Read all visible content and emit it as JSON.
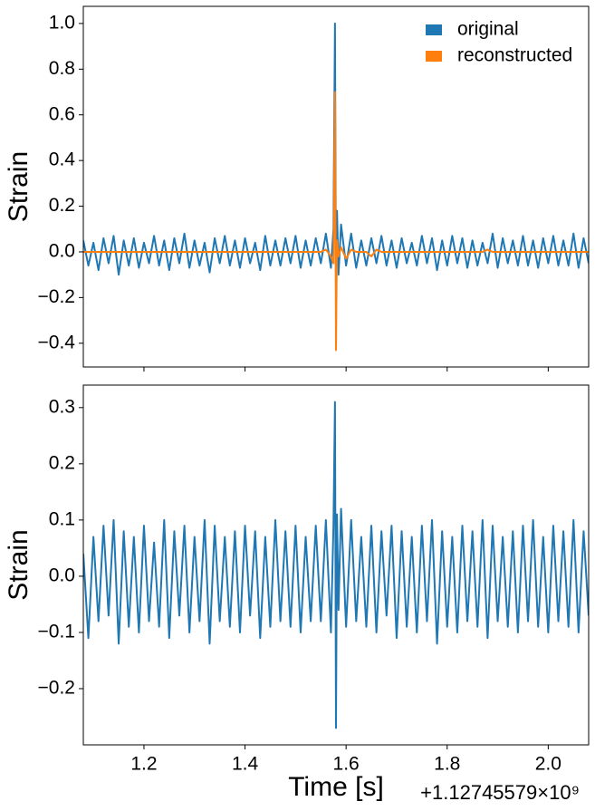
{
  "chart_data": [
    {
      "type": "line",
      "y_label": "Strain",
      "x": [
        1.08,
        1.09,
        1.1,
        1.11,
        1.12,
        1.13,
        1.14,
        1.15,
        1.16,
        1.17,
        1.18,
        1.19,
        1.2,
        1.21,
        1.22,
        1.23,
        1.24,
        1.25,
        1.26,
        1.27,
        1.28,
        1.29,
        1.3,
        1.31,
        1.32,
        1.33,
        1.34,
        1.35,
        1.36,
        1.37,
        1.38,
        1.39,
        1.4,
        1.41,
        1.42,
        1.43,
        1.44,
        1.45,
        1.46,
        1.47,
        1.48,
        1.49,
        1.5,
        1.51,
        1.52,
        1.53,
        1.54,
        1.55,
        1.56,
        1.57,
        1.575,
        1.578,
        1.58,
        1.582,
        1.585,
        1.59,
        1.6,
        1.61,
        1.62,
        1.63,
        1.64,
        1.65,
        1.66,
        1.67,
        1.68,
        1.69,
        1.7,
        1.71,
        1.72,
        1.73,
        1.74,
        1.75,
        1.76,
        1.77,
        1.78,
        1.79,
        1.8,
        1.81,
        1.82,
        1.83,
        1.84,
        1.85,
        1.86,
        1.87,
        1.88,
        1.89,
        1.9,
        1.91,
        1.92,
        1.93,
        1.94,
        1.95,
        1.96,
        1.97,
        1.98,
        1.99,
        2.0,
        2.01,
        2.02,
        2.03,
        2.04,
        2.05,
        2.06,
        2.07,
        2.08
      ],
      "series": [
        {
          "name": "original",
          "color": "#1f77b4",
          "values": [
            0.05,
            -0.06,
            0.04,
            -0.08,
            0.06,
            -0.05,
            0.07,
            -0.1,
            0.05,
            -0.06,
            0.06,
            -0.07,
            0.04,
            -0.05,
            0.07,
            -0.06,
            0.05,
            -0.08,
            0.06,
            -0.05,
            0.08,
            -0.07,
            0.05,
            -0.06,
            0.04,
            -0.09,
            0.06,
            -0.05,
            0.07,
            -0.06,
            0.05,
            -0.07,
            0.06,
            -0.05,
            0.04,
            -0.08,
            0.07,
            -0.06,
            0.05,
            -0.06,
            0.06,
            -0.05,
            0.07,
            -0.07,
            0.05,
            -0.06,
            0.06,
            -0.05,
            0.08,
            -0.07,
            0.1,
            1.0,
            -0.2,
            0.18,
            -0.1,
            0.12,
            -0.06,
            0.08,
            -0.07,
            0.05,
            -0.06,
            0.06,
            -0.05,
            0.07,
            -0.06,
            0.05,
            -0.07,
            0.06,
            -0.05,
            0.04,
            -0.06,
            0.07,
            -0.05,
            0.06,
            -0.08,
            0.05,
            -0.06,
            0.07,
            -0.05,
            0.06,
            -0.07,
            0.05,
            -0.06,
            0.04,
            -0.05,
            0.08,
            -0.07,
            0.06,
            -0.05,
            0.05,
            -0.06,
            0.07,
            -0.06,
            0.05,
            -0.07,
            0.06,
            -0.05,
            0.07,
            -0.06,
            0.05,
            -0.06,
            0.08,
            -0.07,
            0.06,
            -0.05
          ]
        },
        {
          "name": "reconstructed",
          "color": "#ff7f0e",
          "values": [
            0,
            0,
            0,
            0,
            0,
            0,
            0,
            0,
            0,
            0,
            0,
            0,
            0,
            0,
            0,
            0,
            0,
            0,
            0,
            0,
            0,
            0,
            0,
            0,
            0,
            0,
            0,
            0,
            0,
            0,
            0,
            0,
            0,
            0,
            0,
            0,
            0,
            0,
            0,
            0,
            0,
            0,
            0,
            0,
            0,
            0,
            0,
            0,
            0.01,
            -0.02,
            -0.05,
            0.7,
            -0.43,
            0.05,
            -0.02,
            0.02,
            -0.03,
            0.01,
            0,
            0,
            0,
            -0.02,
            0.01,
            0,
            0,
            0,
            0,
            0,
            0,
            0,
            0,
            0,
            0,
            0,
            0,
            0,
            0,
            0,
            0,
            0,
            0,
            0,
            0,
            0,
            0.01,
            0,
            0,
            0,
            0,
            0,
            0,
            0,
            0,
            0,
            0,
            0,
            0,
            0,
            0,
            0,
            0,
            0,
            0,
            0,
            0
          ]
        }
      ],
      "ylim": [
        -0.504,
        1.075
      ],
      "yticks": [
        {
          "value": -0.4,
          "label": "−0.4"
        },
        {
          "value": -0.2,
          "label": "−0.2"
        },
        {
          "value": 0,
          "label": "0.0"
        },
        0.2,
        0.4,
        0.6,
        0.8,
        {
          "value": 1,
          "label": "1.0"
        }
      ],
      "xlim": [
        1.08,
        2.08
      ],
      "xticks": [
        1.2,
        1.4,
        1.6,
        1.8,
        2.0
      ],
      "legend": "upper right"
    },
    {
      "type": "line",
      "y_label": "Strain",
      "x_label": "Time [s]",
      "x_offset_label": "+1.12745579×10⁹",
      "x": [
        1.08,
        1.09,
        1.1,
        1.11,
        1.12,
        1.13,
        1.14,
        1.15,
        1.16,
        1.17,
        1.18,
        1.19,
        1.2,
        1.21,
        1.22,
        1.23,
        1.24,
        1.25,
        1.26,
        1.27,
        1.28,
        1.29,
        1.3,
        1.31,
        1.32,
        1.33,
        1.34,
        1.35,
        1.36,
        1.37,
        1.38,
        1.39,
        1.4,
        1.41,
        1.42,
        1.43,
        1.44,
        1.45,
        1.46,
        1.47,
        1.48,
        1.49,
        1.5,
        1.51,
        1.52,
        1.53,
        1.54,
        1.55,
        1.56,
        1.57,
        1.575,
        1.578,
        1.58,
        1.582,
        1.585,
        1.59,
        1.6,
        1.61,
        1.62,
        1.63,
        1.64,
        1.65,
        1.66,
        1.67,
        1.68,
        1.69,
        1.7,
        1.71,
        1.72,
        1.73,
        1.74,
        1.75,
        1.76,
        1.77,
        1.78,
        1.79,
        1.8,
        1.81,
        1.82,
        1.83,
        1.84,
        1.85,
        1.86,
        1.87,
        1.88,
        1.89,
        1.9,
        1.91,
        1.92,
        1.93,
        1.94,
        1.95,
        1.96,
        1.97,
        1.98,
        1.99,
        2.0,
        2.01,
        2.02,
        2.03,
        2.04,
        2.05,
        2.06,
        2.07,
        2.08
      ],
      "series": [
        {
          "name": "original",
          "color": "#1f77b4",
          "values": [
            0.04,
            -0.11,
            0.07,
            -0.08,
            0.09,
            -0.07,
            0.1,
            -0.12,
            0.08,
            -0.09,
            0.07,
            -0.1,
            0.09,
            -0.08,
            0.06,
            -0.09,
            0.1,
            -0.11,
            0.08,
            -0.07,
            0.09,
            -0.1,
            0.07,
            -0.08,
            0.1,
            -0.12,
            0.09,
            -0.08,
            0.07,
            -0.09,
            0.08,
            -0.1,
            0.09,
            -0.07,
            0.08,
            -0.11,
            0.07,
            -0.09,
            0.1,
            -0.08,
            0.08,
            -0.09,
            0.09,
            -0.1,
            0.07,
            -0.08,
            0.09,
            -0.08,
            0.1,
            -0.1,
            0.09,
            0.31,
            -0.27,
            0.11,
            -0.06,
            0.12,
            -0.09,
            0.1,
            -0.08,
            0.07,
            -0.09,
            0.09,
            -0.1,
            0.08,
            -0.07,
            0.09,
            -0.11,
            0.08,
            -0.09,
            0.07,
            -0.1,
            0.09,
            -0.08,
            0.1,
            -0.12,
            0.08,
            -0.09,
            0.07,
            -0.1,
            0.09,
            -0.08,
            0.08,
            -0.09,
            0.1,
            -0.11,
            0.09,
            -0.08,
            0.07,
            -0.09,
            0.08,
            -0.1,
            0.09,
            -0.08,
            0.1,
            -0.09,
            0.07,
            -0.1,
            0.09,
            -0.08,
            0.08,
            -0.09,
            0.1,
            -0.1,
            0.08,
            -0.07
          ]
        }
      ],
      "ylim": [
        -0.3,
        0.34
      ],
      "yticks": [
        {
          "value": -0.2,
          "label": "−0.2"
        },
        {
          "value": -0.1,
          "label": "−0.1"
        },
        {
          "value": 0,
          "label": "0.0"
        },
        0.1,
        0.2,
        0.3
      ],
      "xlim": [
        1.08,
        2.08
      ],
      "xticks": [
        1.2,
        1.4,
        1.6,
        1.8,
        {
          "value": 2,
          "label": "2.0"
        }
      ]
    }
  ]
}
